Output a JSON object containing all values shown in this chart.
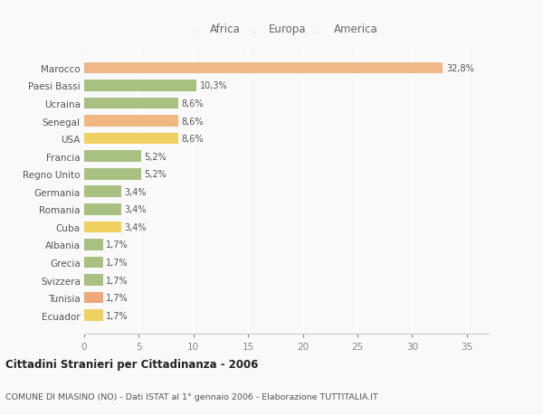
{
  "categories": [
    "Ecuador",
    "Tunisia",
    "Svizzera",
    "Grecia",
    "Albania",
    "Cuba",
    "Romania",
    "Germania",
    "Regno Unito",
    "Francia",
    "USA",
    "Senegal",
    "Ucraina",
    "Paesi Bassi",
    "Marocco"
  ],
  "values": [
    1.7,
    1.7,
    1.7,
    1.7,
    1.7,
    3.4,
    3.4,
    3.4,
    5.2,
    5.2,
    8.6,
    8.6,
    8.6,
    10.3,
    32.8
  ],
  "labels": [
    "1,7%",
    "1,7%",
    "1,7%",
    "1,7%",
    "1,7%",
    "3,4%",
    "3,4%",
    "3,4%",
    "5,2%",
    "5,2%",
    "8,6%",
    "8,6%",
    "8,6%",
    "10,3%",
    "32,8%"
  ],
  "colors": [
    "#f0d060",
    "#f0a878",
    "#a8c080",
    "#a8c080",
    "#a8c080",
    "#f0d060",
    "#a8c080",
    "#a8c080",
    "#a8c080",
    "#a8c080",
    "#f0d060",
    "#f0b880",
    "#a8c080",
    "#a8c080",
    "#f0b888"
  ],
  "legend_labels": [
    "Africa",
    "Europa",
    "America"
  ],
  "legend_colors": [
    "#f0b888",
    "#a8c080",
    "#f0d060"
  ],
  "title": "Cittadini Stranieri per Cittadinanza - 2006",
  "subtitle": "COMUNE DI MIASINO (NO) - Dati ISTAT al 1° gennaio 2006 - Elaborazione TUTTITALIA.IT",
  "xlim": [
    0,
    37
  ],
  "background_color": "#f9f9f9",
  "grid_color": "#e8e8e8",
  "bar_height": 0.65
}
